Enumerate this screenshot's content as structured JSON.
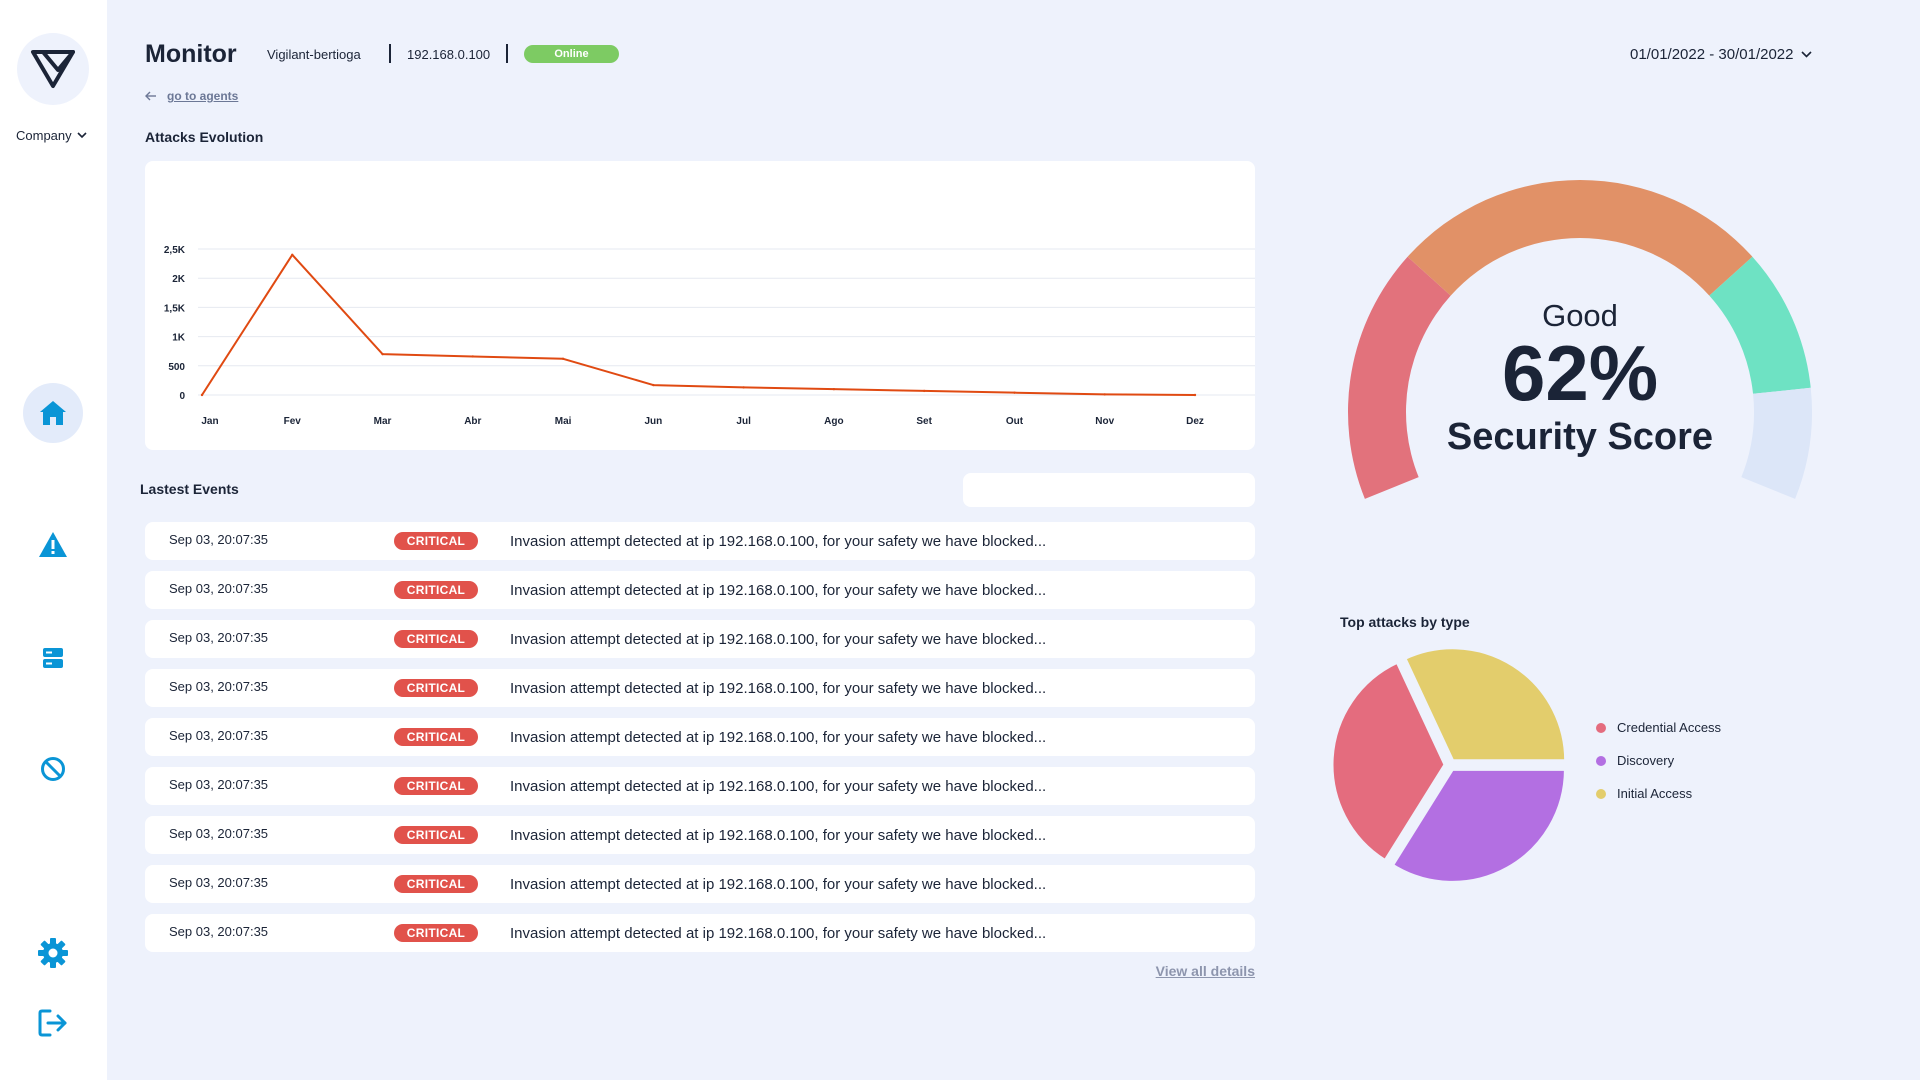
{
  "sidebar": {
    "company_label": "Company",
    "nav": [
      {
        "name": "home",
        "icon": "home-icon",
        "active": true
      },
      {
        "name": "alerts",
        "icon": "warning-icon",
        "active": false
      },
      {
        "name": "servers",
        "icon": "server-icon",
        "active": false
      },
      {
        "name": "blocked",
        "icon": "block-icon",
        "active": false
      },
      {
        "name": "settings",
        "icon": "gear-icon",
        "active": false
      },
      {
        "name": "logout",
        "icon": "logout-icon",
        "active": false
      }
    ],
    "accent_color": "#0a95d6"
  },
  "header": {
    "title": "Monitor",
    "agent_name": "Vigilant-bertioga",
    "agent_ip": "192.168.0.100",
    "status": "Online",
    "status_color": "#7dcb63",
    "date_range": "01/01/2022 - 30/01/2022",
    "back_link": "go to agents"
  },
  "attacks_evolution": {
    "title": "Attacks Evolution"
  },
  "chart_data": {
    "type": "line",
    "title": "Attacks Evolution",
    "categories": [
      "Jan",
      "Fev",
      "Mar",
      "Abr",
      "Mai",
      "Jun",
      "Jul",
      "Ago",
      "Set",
      "Out",
      "Nov",
      "Dez"
    ],
    "y_tick_labels": [
      "0",
      "500",
      "1K",
      "1,5K",
      "2K",
      "2,5K"
    ],
    "y_ticks": [
      0,
      500,
      1000,
      1500,
      2000,
      2500
    ],
    "ylim": [
      0,
      2500
    ],
    "series": [
      {
        "values": [
          0,
          2400,
          700,
          660,
          620,
          170,
          130,
          100,
          70,
          40,
          10,
          0
        ],
        "color": "#e04a12"
      }
    ],
    "grid": true,
    "xlabel": "",
    "ylabel": ""
  },
  "events": {
    "title": "Lastest Events",
    "search_value": "",
    "rows": [
      {
        "time": "Sep 03, 20:07:35",
        "severity": "CRITICAL",
        "message": "Invasion attempt detected at ip 192.168.0.100, for your safety we have blocked..."
      },
      {
        "time": "Sep 03, 20:07:35",
        "severity": "CRITICAL",
        "message": "Invasion attempt detected at ip 192.168.0.100, for your safety we have blocked..."
      },
      {
        "time": "Sep 03, 20:07:35",
        "severity": "CRITICAL",
        "message": "Invasion attempt detected at ip 192.168.0.100, for your safety we have blocked..."
      },
      {
        "time": "Sep 03, 20:07:35",
        "severity": "CRITICAL",
        "message": "Invasion attempt detected at ip 192.168.0.100, for your safety we have blocked..."
      },
      {
        "time": "Sep 03, 20:07:35",
        "severity": "CRITICAL",
        "message": "Invasion attempt detected at ip 192.168.0.100, for your safety we have blocked..."
      },
      {
        "time": "Sep 03, 20:07:35",
        "severity": "CRITICAL",
        "message": "Invasion attempt detected at ip 192.168.0.100, for your safety we have blocked..."
      },
      {
        "time": "Sep 03, 20:07:35",
        "severity": "CRITICAL",
        "message": "Invasion attempt detected at ip 192.168.0.100, for your safety we have blocked..."
      },
      {
        "time": "Sep 03, 20:07:35",
        "severity": "CRITICAL",
        "message": "Invasion attempt detected at ip 192.168.0.100, for your safety we have blocked..."
      },
      {
        "time": "Sep 03, 20:07:35",
        "severity": "CRITICAL",
        "message": "Invasion attempt detected at ip 192.168.0.100, for your safety we have blocked..."
      }
    ],
    "view_all": "View all details",
    "critical_color": "#e1524b"
  },
  "security_score": {
    "quality": "Good",
    "value": "62%",
    "label": "Security Score",
    "percent": 62,
    "segment_colors": [
      "#e2727c",
      "#e19167",
      "#6ee2c3",
      "#dce6f8"
    ]
  },
  "top_attacks": {
    "title": "Top attacks by type",
    "slices": [
      {
        "label": "Credential Access",
        "share": 31,
        "color": "#e46c7e"
      },
      {
        "label": "Discovery",
        "share": 34,
        "color": "#b36fe2"
      },
      {
        "label": "Initial Access",
        "share": 35,
        "color": "#e3cd6c"
      }
    ]
  }
}
